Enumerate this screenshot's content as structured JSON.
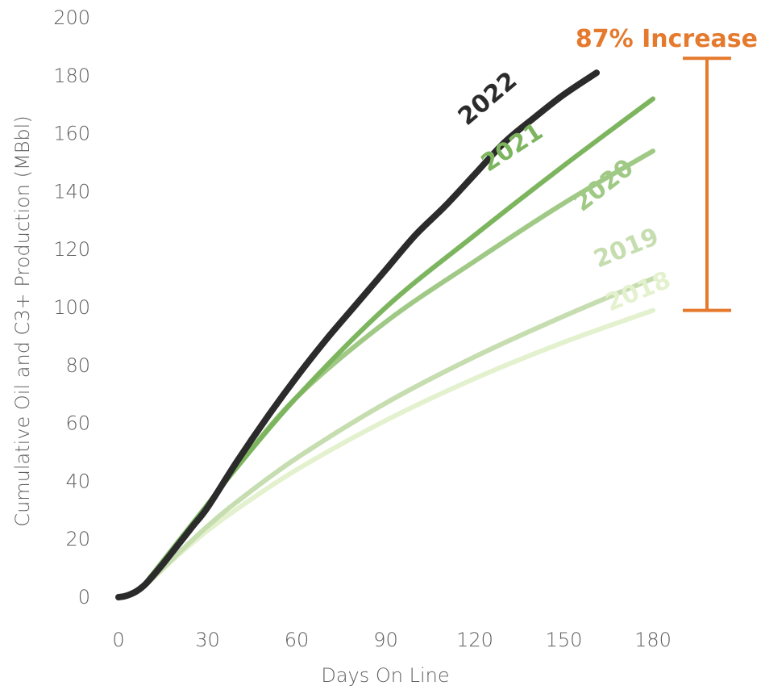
{
  "chart_data": {
    "type": "line",
    "title": "",
    "xlabel": "Days On Line",
    "ylabel": "Cumulative Oil and C3+ Production (MBbl)",
    "xlim": [
      0,
      180
    ],
    "ylim": [
      0,
      200
    ],
    "x_ticks": [
      "0",
      "30",
      "60",
      "90",
      "120",
      "150",
      "180"
    ],
    "y_ticks": [
      "0",
      "20",
      "40",
      "60",
      "80",
      "100",
      "120",
      "140",
      "160",
      "180",
      "200"
    ],
    "grid": false,
    "legend": "direct labels",
    "series": [
      {
        "name": "2018",
        "color": "#e3f1ce",
        "x": [
          0,
          2,
          4,
          6,
          8,
          10,
          20,
          30,
          40,
          60,
          90,
          120,
          150,
          180
        ],
        "y": [
          0,
          0.3,
          0.9,
          1.8,
          3.2,
          5.0,
          14.5,
          23.0,
          30.5,
          44.0,
          61.0,
          75.5,
          88.0,
          99.0
        ]
      },
      {
        "name": "2019",
        "color": "#c6ddb0",
        "x": [
          0,
          2,
          4,
          6,
          8,
          10,
          20,
          30,
          40,
          60,
          90,
          120,
          150,
          180
        ],
        "y": [
          0,
          0.3,
          0.9,
          1.8,
          3.2,
          5.0,
          15.0,
          24.5,
          33.0,
          48.0,
          67.0,
          83.0,
          97.0,
          110.0
        ]
      },
      {
        "name": "2020",
        "color": "#9fc985",
        "x": [
          0,
          2,
          4,
          6,
          8,
          10,
          20,
          30,
          40,
          60,
          90,
          120,
          150,
          180
        ],
        "y": [
          0,
          0.3,
          1.0,
          2.0,
          3.5,
          6.0,
          19.0,
          32.0,
          45.0,
          69.0,
          95.0,
          116.0,
          136.0,
          154.0
        ]
      },
      {
        "name": "2021",
        "color": "#7db55f",
        "x": [
          0,
          2,
          4,
          6,
          8,
          10,
          20,
          30,
          40,
          60,
          90,
          120,
          150,
          180
        ],
        "y": [
          0,
          0.3,
          1.0,
          2.0,
          3.5,
          6.0,
          19.0,
          32.0,
          45.0,
          69.0,
          100.0,
          125.0,
          149.0,
          172.0
        ]
      },
      {
        "name": "2022",
        "color": "#2b2b2b",
        "x": [
          0,
          2,
          4,
          6,
          8,
          10,
          15,
          20,
          25,
          30,
          40,
          50,
          60,
          70,
          80,
          90,
          100,
          110,
          120,
          130,
          140,
          150,
          161
        ],
        "y": [
          0,
          0.3,
          1.0,
          2.0,
          3.5,
          5.5,
          11.5,
          18.0,
          24.5,
          31.0,
          47.0,
          62.0,
          76.0,
          89.0,
          101.0,
          113.0,
          125.0,
          135.0,
          146.0,
          157.0,
          165.5,
          173.5,
          181.0
        ]
      }
    ],
    "annotations": [
      {
        "text": "87% Increase",
        "color": "#e57a2e",
        "range": [
          99,
          186
        ]
      }
    ]
  }
}
